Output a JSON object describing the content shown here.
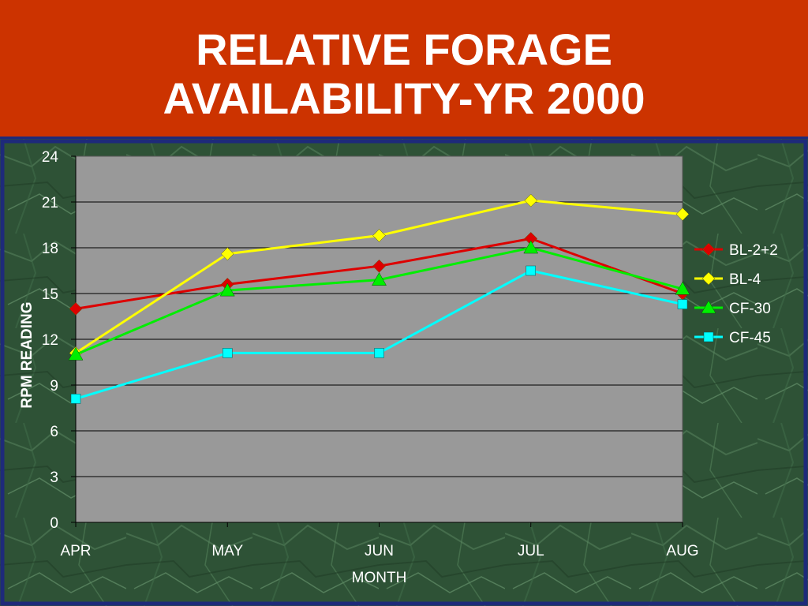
{
  "title_lines": [
    "RELATIVE FORAGE",
    "AVAILABILITY-YR 2000"
  ],
  "colors": {
    "title_band": "#cc3300",
    "body_background": "#2e5236",
    "plot_area": "#999999",
    "axis_title_x": "#00ccff"
  },
  "chart_data": {
    "type": "line",
    "categories": [
      "APR",
      "MAY",
      "JUN",
      "JUL",
      "AUG"
    ],
    "xlabel": "MONTH",
    "ylabel": "RPM READING",
    "ylim": [
      0,
      24
    ],
    "yticks": [
      0,
      3,
      6,
      9,
      12,
      15,
      18,
      21,
      24
    ],
    "grid": true,
    "legend_position": "right",
    "series": [
      {
        "name": "BL-2+2",
        "color": "#dd0000",
        "marker": "diamond",
        "values": [
          14.0,
          15.6,
          16.8,
          18.6,
          15.0
        ]
      },
      {
        "name": "BL-4",
        "color": "#ffff00",
        "marker": "diamond",
        "values": [
          11.1,
          17.6,
          18.8,
          21.1,
          20.2
        ]
      },
      {
        "name": "CF-30",
        "color": "#00ee00",
        "marker": "triangle",
        "values": [
          11.0,
          15.2,
          15.9,
          18.0,
          15.3
        ]
      },
      {
        "name": "CF-45",
        "color": "#00ffff",
        "marker": "square",
        "values": [
          8.1,
          11.1,
          11.1,
          16.5,
          14.3
        ]
      }
    ]
  }
}
